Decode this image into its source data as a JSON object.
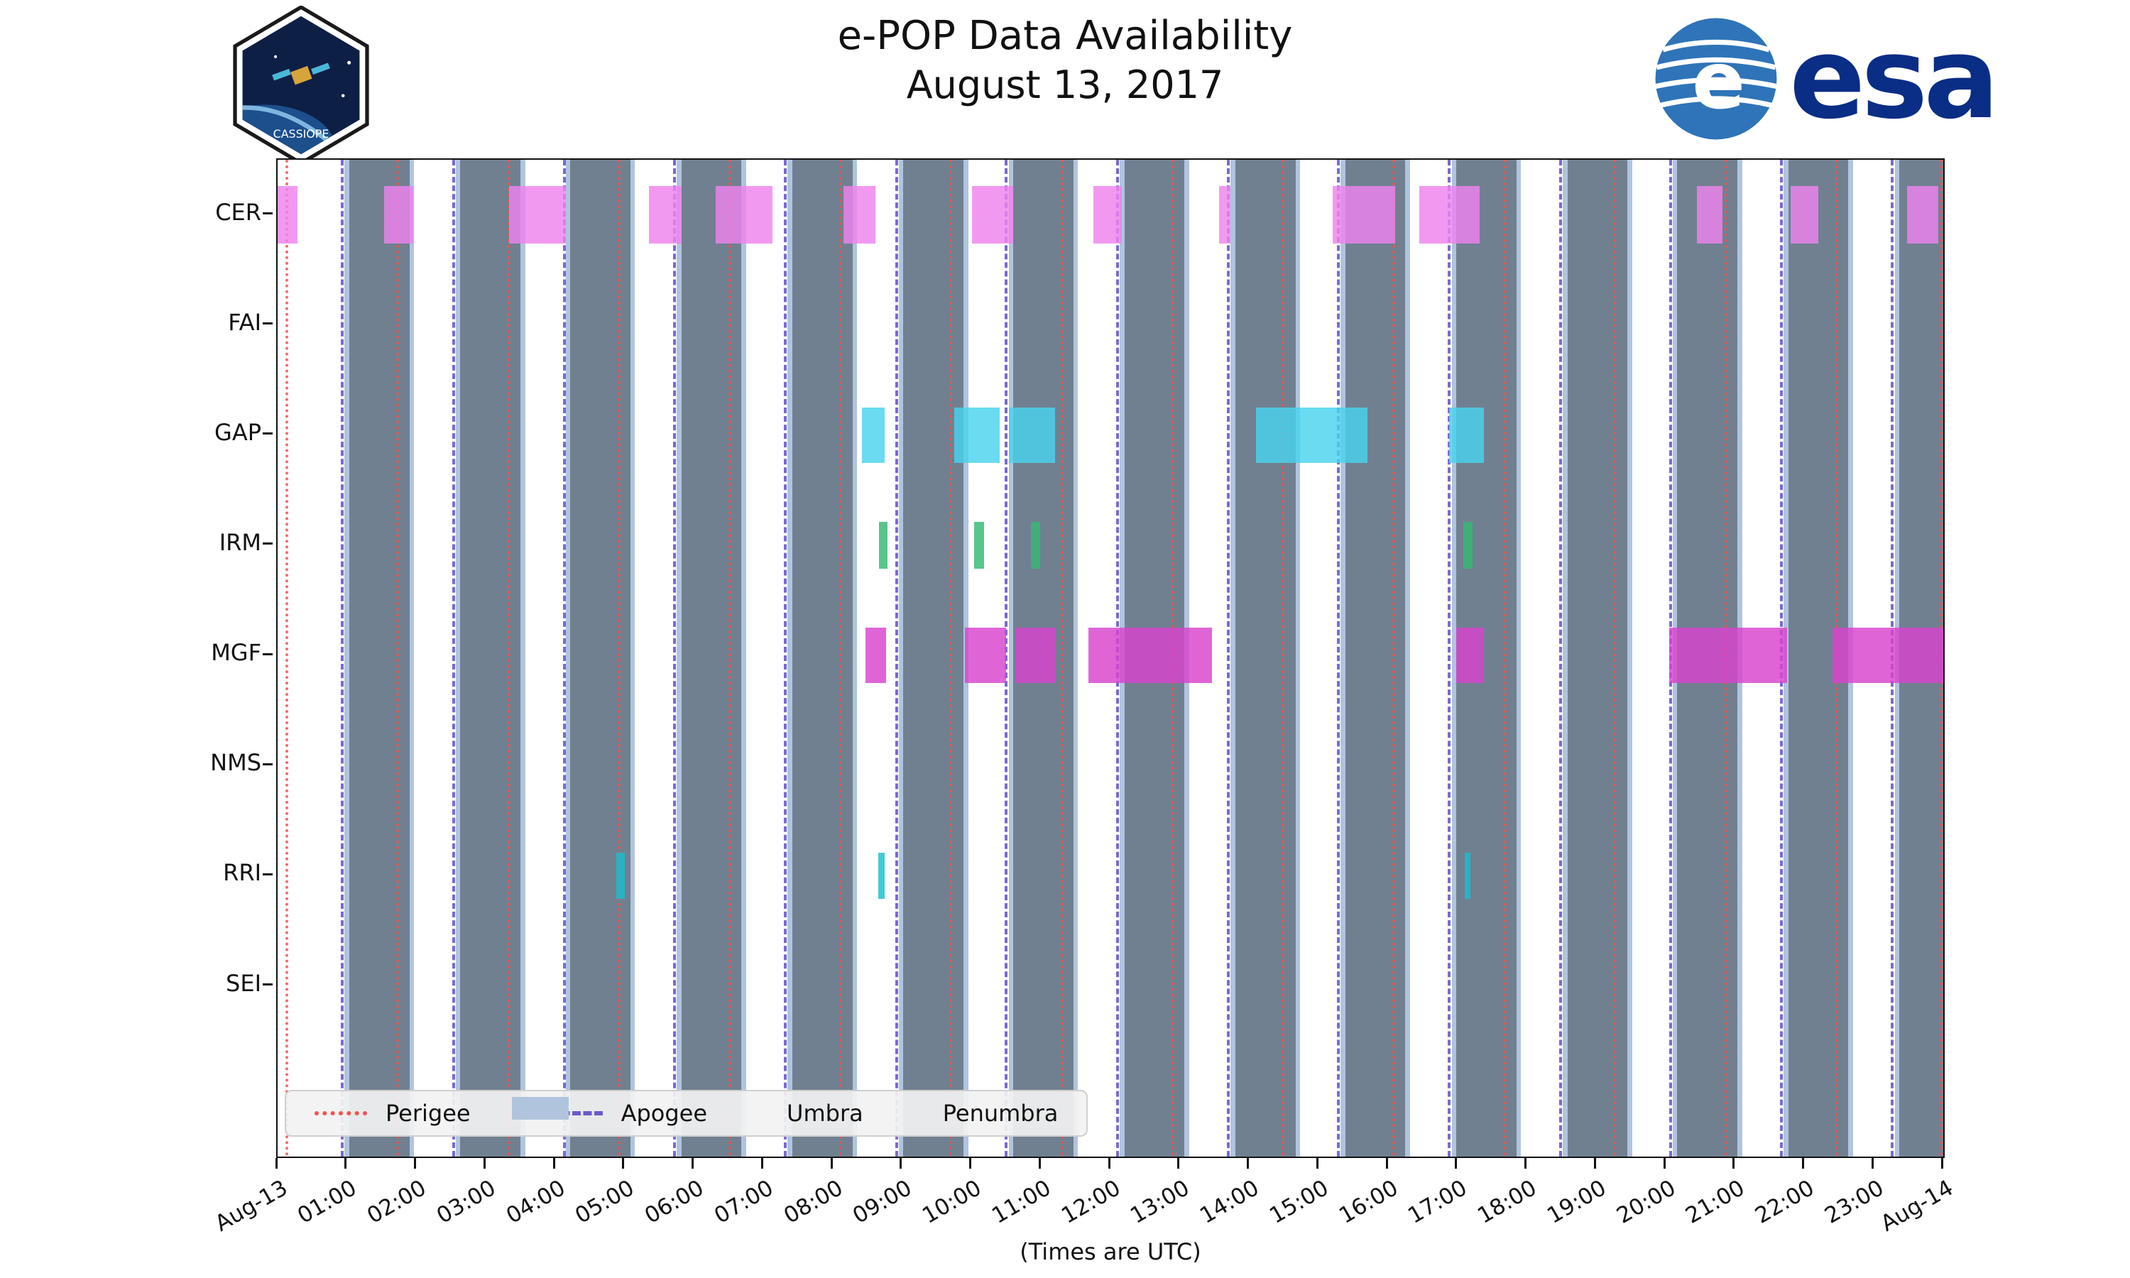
{
  "header": {
    "title": "e-POP Data Availability",
    "subtitle": "August 13, 2017",
    "cassiope_label": "CASSIOPE",
    "esa_label": "esa"
  },
  "axis": {
    "xlabel": "(Times are UTC)"
  },
  "legend": {
    "items": [
      {
        "label": "Perigee",
        "type": "dotted-line",
        "color": "#f2524f"
      },
      {
        "label": "Apogee",
        "type": "dashed-line",
        "color": "#6a5acd"
      },
      {
        "label": "Umbra",
        "type": "patch",
        "color": "#708090"
      },
      {
        "label": "Penumbra",
        "type": "patch",
        "color": "#b0c4de"
      }
    ]
  },
  "chart_data": {
    "type": "timeline",
    "title": "e-POP Data Availability",
    "subtitle": "August 13, 2017",
    "xlabel": "(Times are UTC)",
    "x_range_minutes": [
      0,
      1440
    ],
    "x_ticks": [
      "Aug-13",
      "01:00",
      "02:00",
      "03:00",
      "04:00",
      "05:00",
      "06:00",
      "07:00",
      "08:00",
      "09:00",
      "10:00",
      "11:00",
      "12:00",
      "13:00",
      "14:00",
      "15:00",
      "16:00",
      "17:00",
      "18:00",
      "19:00",
      "20:00",
      "21:00",
      "22:00",
      "23:00",
      "Aug-14"
    ],
    "instruments": [
      "CER",
      "FAI",
      "GAP",
      "IRM",
      "MGF",
      "NMS",
      "RRI",
      "SEI"
    ],
    "series": [
      {
        "name": "CER",
        "color": "#ee82ee",
        "bar_height_frac": 0.52,
        "intervals": [
          [
            "00:00",
            "00:17"
          ],
          [
            "01:32",
            "01:57"
          ],
          [
            "03:20",
            "04:09"
          ],
          [
            "05:21",
            "05:49"
          ],
          [
            "06:19",
            "07:08"
          ],
          [
            "08:09",
            "08:37"
          ],
          [
            "10:00",
            "10:36"
          ],
          [
            "11:45",
            "12:10"
          ],
          [
            "13:34",
            "13:44"
          ],
          [
            "15:12",
            "16:06"
          ],
          [
            "16:27",
            "17:19"
          ],
          [
            "20:27",
            "20:49"
          ],
          [
            "21:48",
            "22:12"
          ],
          [
            "23:29",
            "23:56"
          ]
        ]
      },
      {
        "name": "FAI",
        "color": "#ff7f0e",
        "bar_height_frac": 0.5,
        "intervals": []
      },
      {
        "name": "GAP",
        "color": "#49d3ee",
        "bar_height_frac": 0.5,
        "intervals": [
          [
            "08:25",
            "08:45"
          ],
          [
            "09:45",
            "10:24"
          ],
          [
            "10:32",
            "11:12"
          ],
          [
            "14:06",
            "15:42"
          ],
          [
            "16:53",
            "17:23"
          ]
        ]
      },
      {
        "name": "IRM",
        "color": "#35b873",
        "bar_height_frac": 0.42,
        "intervals": [
          [
            "08:40",
            "08:47"
          ],
          [
            "10:02",
            "10:11"
          ],
          [
            "10:51",
            "10:59"
          ],
          [
            "17:05",
            "17:13"
          ]
        ]
      },
      {
        "name": "MGF",
        "color": "#d843ce",
        "bar_height_frac": 0.5,
        "intervals": [
          [
            "08:28",
            "08:46"
          ],
          [
            "09:54",
            "10:30"
          ],
          [
            "10:38",
            "11:13"
          ],
          [
            "11:41",
            "13:28"
          ],
          [
            "16:59",
            "17:23"
          ],
          [
            "20:03",
            "21:45"
          ],
          [
            "22:24",
            "24:00"
          ]
        ]
      },
      {
        "name": "NMS",
        "color": "#8c564b",
        "bar_height_frac": 0.5,
        "intervals": []
      },
      {
        "name": "RRI",
        "color": "#17becf",
        "bar_height_frac": 0.42,
        "intervals": [
          [
            "04:53",
            "05:00"
          ],
          [
            "08:39",
            "08:45"
          ],
          [
            "17:06",
            "17:11"
          ]
        ]
      },
      {
        "name": "SEI",
        "color": "#7f7f7f",
        "bar_height_frac": 0.5,
        "intervals": []
      }
    ],
    "perigee": {
      "label": "Perigee",
      "color": "#f2524f",
      "style": "dotted",
      "times": [
        "00:08",
        "01:44",
        "03:20",
        "04:55",
        "06:31",
        "08:07",
        "09:42",
        "11:18",
        "12:54",
        "14:29",
        "16:05",
        "17:41",
        "19:16",
        "20:52",
        "22:28",
        "23:58"
      ]
    },
    "apogee": {
      "label": "Apogee",
      "color": "#6a5acd",
      "style": "dashed",
      "times": [
        "00:56",
        "02:32",
        "04:08",
        "05:43",
        "07:19",
        "08:55",
        "10:30",
        "12:06",
        "13:42",
        "15:17",
        "16:53",
        "18:29",
        "20:04",
        "21:40",
        "23:16"
      ]
    },
    "umbra": {
      "label": "Umbra",
      "color": "#708090",
      "intervals": [
        [
          "01:02",
          "01:54"
        ],
        [
          "02:38",
          "03:30"
        ],
        [
          "04:13",
          "05:05"
        ],
        [
          "05:49",
          "06:41"
        ],
        [
          "07:25",
          "08:17"
        ],
        [
          "09:01",
          "09:53"
        ],
        [
          "10:36",
          "11:28"
        ],
        [
          "12:12",
          "13:04"
        ],
        [
          "13:48",
          "14:40"
        ],
        [
          "15:23",
          "16:15"
        ],
        [
          "16:59",
          "17:51"
        ],
        [
          "18:35",
          "19:27"
        ],
        [
          "20:10",
          "21:02"
        ],
        [
          "21:46",
          "22:38"
        ],
        [
          "23:22",
          "24:00"
        ]
      ]
    },
    "penumbra": {
      "label": "Penumbra",
      "color": "#b0c4de",
      "edge_minutes": 4
    }
  }
}
